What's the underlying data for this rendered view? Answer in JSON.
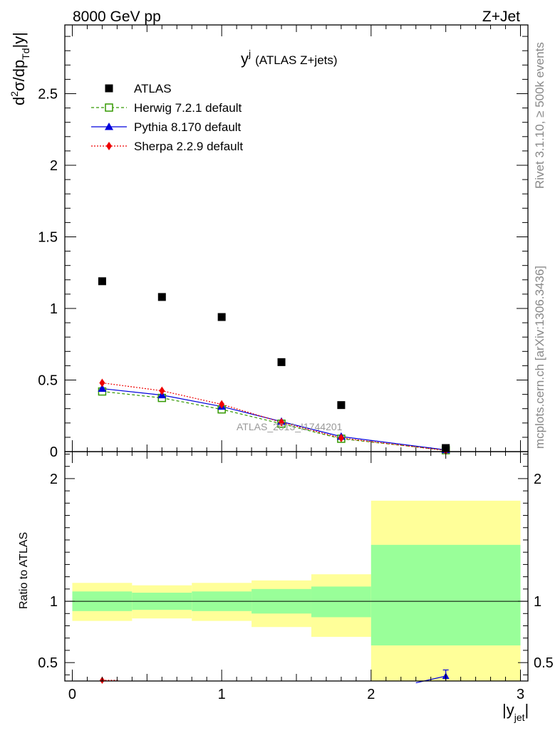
{
  "header": {
    "left": "8000 GeV pp",
    "right": "Z+Jet"
  },
  "side_labels": {
    "rivet": "Rivet 3.1.10, ≥ 500k events",
    "mcplots": "mcplots.cern.ch [arXiv:1306.3436]"
  },
  "watermark": "ATLAS_2013_I1744201",
  "colors": {
    "atlas": "#000000",
    "herwig": "#339900",
    "pythia": "#0000dd",
    "sherpa": "#ee0000",
    "band_outer": "#ffff99",
    "band_inner": "#99ff99"
  },
  "chart_data": [
    {
      "name": "main",
      "type": "scatter",
      "title": "y",
      "title_sup": "j",
      "title_rest": "(ATLAS Z+jets)",
      "ylabel": {
        "d": "d",
        "sup2": "2",
        "sigma": "σ/dp",
        "sub": "Td",
        "end": "|y|"
      },
      "xlim": [
        -0.05,
        3.05
      ],
      "ylim": [
        0,
        2.98
      ],
      "yticks": [
        {
          "v": 0,
          "label": "0"
        },
        {
          "v": 0.5,
          "label": "0.5"
        },
        {
          "v": 1,
          "label": "1"
        },
        {
          "v": 1.5,
          "label": "1.5"
        },
        {
          "v": 2,
          "label": "2"
        },
        {
          "v": 2.5,
          "label": "2.5"
        }
      ],
      "legend": {
        "position": "top-left",
        "entries": [
          {
            "key": "atlas",
            "label": "ATLAS"
          },
          {
            "key": "herwig",
            "label": "Herwig 7.2.1 default"
          },
          {
            "key": "pythia",
            "label": "Pythia 8.170 default"
          },
          {
            "key": "sherpa",
            "label": "Sherpa 2.2.9 default"
          }
        ]
      },
      "x": [
        0.2,
        0.6,
        1.0,
        1.4,
        1.8,
        2.5
      ],
      "series": [
        {
          "key": "atlas",
          "name": "ATLAS",
          "values": [
            1.19,
            1.08,
            0.94,
            0.625,
            0.325,
            0.025
          ]
        },
        {
          "key": "herwig",
          "name": "Herwig 7.2.1 default",
          "values": [
            0.42,
            0.375,
            0.295,
            0.195,
            0.09,
            0.01
          ]
        },
        {
          "key": "pythia",
          "name": "Pythia 8.170 default",
          "values": [
            0.44,
            0.395,
            0.315,
            0.21,
            0.105,
            0.012
          ]
        },
        {
          "key": "sherpa",
          "name": "Sherpa 2.2.9 default",
          "values": [
            0.48,
            0.425,
            0.33,
            0.205,
            0.095,
            0.008
          ]
        }
      ]
    },
    {
      "name": "ratio",
      "type": "area",
      "ylabel": "Ratio to ATLAS",
      "xlabel": "|y",
      "xlabel_sub": "jet",
      "xlabel_end": "|",
      "xlim": [
        -0.05,
        3.05
      ],
      "ylim": [
        0.35,
        2.22
      ],
      "xticks": [
        {
          "v": 0,
          "label": "0"
        },
        {
          "v": 1,
          "label": "1"
        },
        {
          "v": 2,
          "label": "2"
        },
        {
          "v": 3,
          "label": "3"
        }
      ],
      "yticks": [
        {
          "v": 0.5,
          "label": "0.5"
        },
        {
          "v": 1,
          "label": "1"
        },
        {
          "v": 2,
          "label": "2"
        }
      ],
      "bins": [
        {
          "lo": 0.0,
          "hi": 0.4,
          "inner": [
            0.92,
            1.08
          ],
          "outer": [
            0.84,
            1.15
          ]
        },
        {
          "lo": 0.4,
          "hi": 0.8,
          "inner": [
            0.93,
            1.07
          ],
          "outer": [
            0.86,
            1.13
          ]
        },
        {
          "lo": 0.8,
          "hi": 1.2,
          "inner": [
            0.92,
            1.08
          ],
          "outer": [
            0.84,
            1.15
          ]
        },
        {
          "lo": 1.2,
          "hi": 1.6,
          "inner": [
            0.9,
            1.1
          ],
          "outer": [
            0.79,
            1.17
          ]
        },
        {
          "lo": 1.6,
          "hi": 2.0,
          "inner": [
            0.87,
            1.12
          ],
          "outer": [
            0.71,
            1.22
          ]
        },
        {
          "lo": 2.0,
          "hi": 3.0,
          "inner": [
            0.64,
            1.46
          ],
          "outer": [
            0.3,
            1.82
          ]
        }
      ],
      "sherpa_point": {
        "x": 0.2,
        "y": 0.35
      },
      "pythia_point": {
        "x": 2.5,
        "y": 0.39,
        "err": [
          0.35,
          0.44
        ]
      },
      "pythia_line": {
        "x": [
          2.3,
          2.5
        ],
        "y": [
          0.335,
          0.39
        ]
      }
    }
  ]
}
